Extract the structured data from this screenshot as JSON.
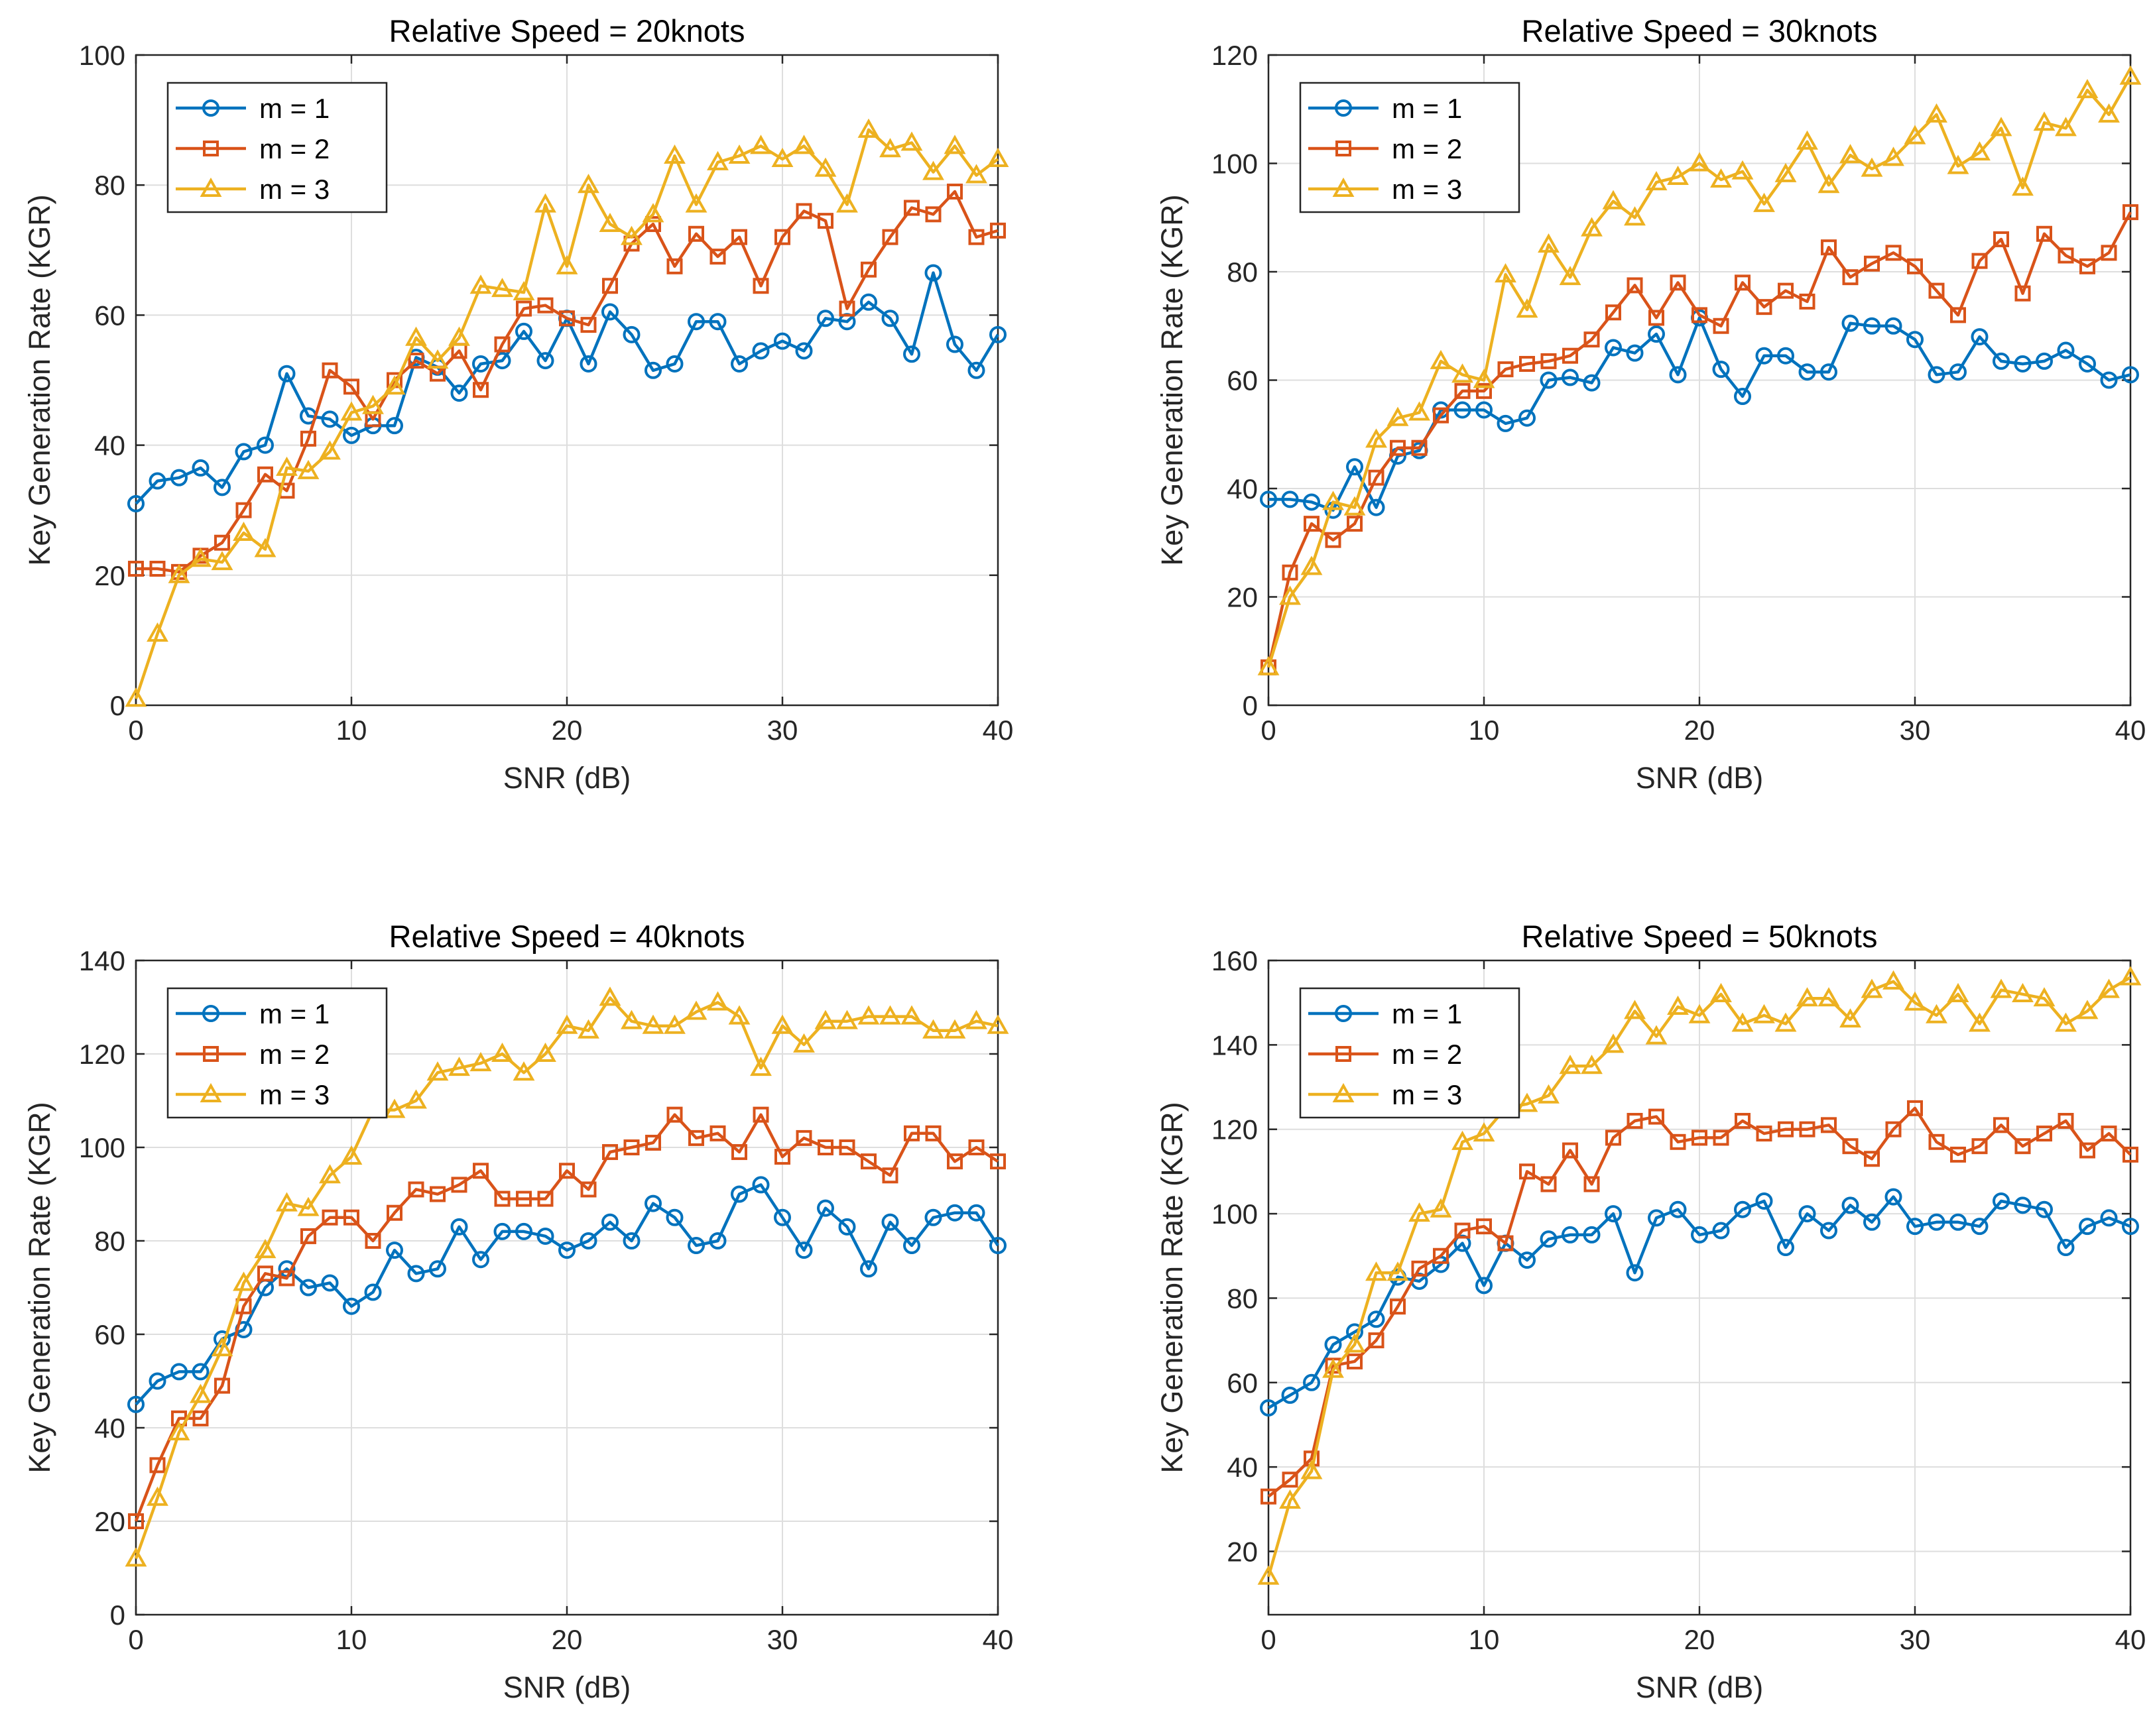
{
  "chart_data": [
    {
      "type": "line",
      "title": "Relative Speed = 20knots",
      "xlabel": "SNR (dB)",
      "ylabel": "Key Generation Rate (KGR)",
      "xlim": [
        0,
        40
      ],
      "ylim": [
        0,
        100
      ],
      "xticks": [
        0,
        10,
        20,
        30,
        40
      ],
      "yticks": [
        0,
        20,
        40,
        60,
        80,
        100
      ],
      "grid": true,
      "legend": "top-left",
      "x": [
        0,
        1,
        2,
        3,
        4,
        5,
        6,
        7,
        8,
        9,
        10,
        11,
        12,
        13,
        14,
        15,
        16,
        17,
        18,
        19,
        20,
        21,
        22,
        23,
        24,
        25,
        26,
        27,
        28,
        29,
        30,
        31,
        32,
        33,
        34,
        35,
        36,
        37,
        38,
        39,
        40
      ],
      "series": [
        {
          "name": "m = 1",
          "color": "#0072BD",
          "marker": "circle",
          "values": [
            31,
            34.5,
            35,
            36.5,
            33.5,
            39,
            40,
            51,
            44.5,
            44,
            41.5,
            43,
            43,
            53.5,
            52,
            48,
            52.5,
            53,
            57.5,
            53,
            59.5,
            52.5,
            60.5,
            57,
            51.5,
            52.5,
            59,
            59,
            52.5,
            54.5,
            56,
            54.5,
            59.5,
            59,
            62,
            59.5,
            54,
            66.5,
            55.5,
            51.5,
            57
          ]
        },
        {
          "name": "m = 2",
          "color": "#D95319",
          "marker": "square",
          "values": [
            21,
            21,
            20.5,
            23,
            25,
            30,
            35.5,
            33,
            41,
            51.5,
            49,
            44,
            50,
            53,
            51,
            54.5,
            48.5,
            55.5,
            61,
            61.5,
            59.5,
            58.5,
            64.5,
            71,
            74,
            67.5,
            72.5,
            69,
            72,
            64.5,
            72,
            76,
            74.5,
            61,
            67,
            72,
            76.5,
            75.5,
            79,
            72,
            73
          ]
        },
        {
          "name": "m = 3",
          "color": "#EDB120",
          "marker": "triangle",
          "values": [
            1,
            11,
            20,
            22.5,
            22,
            26.5,
            24,
            36.5,
            36,
            39,
            45,
            46,
            49,
            56.5,
            53,
            56.5,
            64.5,
            64,
            63.5,
            77,
            67.5,
            80,
            74,
            72,
            75.5,
            84.5,
            77,
            83.5,
            84.5,
            86,
            84,
            86,
            82.5,
            77,
            88.5,
            85.5,
            86.5,
            82,
            86,
            81.5,
            84
          ]
        }
      ]
    },
    {
      "type": "line",
      "title": "Relative Speed = 30knots",
      "xlabel": "SNR (dB)",
      "ylabel": "Key Generation Rate (KGR)",
      "xlim": [
        0,
        40
      ],
      "ylim": [
        0,
        120
      ],
      "xticks": [
        0,
        10,
        20,
        30,
        40
      ],
      "yticks": [
        0,
        20,
        40,
        60,
        80,
        100,
        120
      ],
      "grid": true,
      "legend": "top-left",
      "x": [
        0,
        1,
        2,
        3,
        4,
        5,
        6,
        7,
        8,
        9,
        10,
        11,
        12,
        13,
        14,
        15,
        16,
        17,
        18,
        19,
        20,
        21,
        22,
        23,
        24,
        25,
        26,
        27,
        28,
        29,
        30,
        31,
        32,
        33,
        34,
        35,
        36,
        37,
        38,
        39,
        40
      ],
      "series": [
        {
          "name": "m = 1",
          "color": "#0072BD",
          "marker": "circle",
          "values": [
            38,
            38,
            37.5,
            36,
            44,
            36.5,
            46,
            47,
            54.5,
            54.5,
            54.5,
            52,
            53,
            60,
            60.5,
            59.5,
            66,
            65,
            68.5,
            61,
            71.5,
            62,
            57,
            64.5,
            64.5,
            61.5,
            61.5,
            70.5,
            70,
            70,
            67.5,
            61,
            61.5,
            68,
            63.5,
            63,
            63.5,
            65.5,
            63,
            60,
            61
          ]
        },
        {
          "name": "m = 2",
          "color": "#D95319",
          "marker": "square",
          "values": [
            7,
            24.5,
            33.5,
            30.5,
            33.5,
            42,
            47.5,
            47.5,
            53.5,
            58,
            58,
            62,
            63,
            63.5,
            64.5,
            67.5,
            72.5,
            77.5,
            71.5,
            78,
            72,
            70,
            78,
            73.5,
            76.5,
            74.5,
            84.5,
            79,
            81.5,
            83.5,
            81,
            76.5,
            72,
            82,
            86,
            76,
            87,
            83,
            81,
            83.5,
            91
          ]
        },
        {
          "name": "m = 3",
          "color": "#EDB120",
          "marker": "triangle",
          "values": [
            7,
            20,
            25.5,
            37.5,
            36.5,
            49,
            53,
            54,
            63.5,
            61,
            60,
            79.5,
            73,
            85,
            79,
            88,
            93,
            90,
            96.5,
            97.5,
            100,
            97,
            98.5,
            92.5,
            98,
            104,
            96,
            101.5,
            99,
            101,
            105,
            109,
            99.5,
            102,
            106.5,
            95.5,
            107.5,
            106.5,
            113.5,
            109,
            116
          ]
        }
      ]
    },
    {
      "type": "line",
      "title": "Relative Speed = 40knots",
      "xlabel": "SNR (dB)",
      "ylabel": "Key Generation Rate (KGR)",
      "xlim": [
        0,
        40
      ],
      "ylim": [
        0,
        140
      ],
      "xticks": [
        0,
        10,
        20,
        30,
        40
      ],
      "yticks": [
        0,
        20,
        40,
        60,
        80,
        100,
        120,
        140
      ],
      "grid": true,
      "legend": "top-left",
      "x": [
        0,
        1,
        2,
        3,
        4,
        5,
        6,
        7,
        8,
        9,
        10,
        11,
        12,
        13,
        14,
        15,
        16,
        17,
        18,
        19,
        20,
        21,
        22,
        23,
        24,
        25,
        26,
        27,
        28,
        29,
        30,
        31,
        32,
        33,
        34,
        35,
        36,
        37,
        38,
        39,
        40
      ],
      "series": [
        {
          "name": "m = 1",
          "color": "#0072BD",
          "marker": "circle",
          "values": [
            45,
            50,
            52,
            52,
            59,
            61,
            70,
            74,
            70,
            71,
            66,
            69,
            78,
            73,
            74,
            83,
            76,
            82,
            82,
            81,
            78,
            80,
            84,
            80,
            88,
            85,
            79,
            80,
            90,
            92,
            85,
            78,
            87,
            83,
            74,
            84,
            79,
            85,
            86,
            86,
            79
          ]
        },
        {
          "name": "m = 2",
          "color": "#D95319",
          "marker": "square",
          "values": [
            20,
            32,
            42,
            42,
            49,
            66,
            73,
            72,
            81,
            85,
            85,
            80,
            86,
            91,
            90,
            92,
            95,
            89,
            89,
            89,
            95,
            91,
            99,
            100,
            101,
            107,
            102,
            103,
            99,
            107,
            98,
            102,
            100,
            100,
            97,
            94,
            103,
            103,
            97,
            100,
            97
          ]
        },
        {
          "name": "m = 3",
          "color": "#EDB120",
          "marker": "triangle",
          "values": [
            12,
            25,
            39,
            47,
            57,
            71,
            78,
            88,
            87,
            94,
            98,
            108,
            108,
            110,
            116,
            117,
            118,
            120,
            116,
            120,
            126,
            125,
            132,
            127,
            126,
            126,
            129,
            131,
            128,
            117,
            126,
            122,
            127,
            127,
            128,
            128,
            128,
            125,
            125,
            127,
            126
          ]
        }
      ]
    },
    {
      "type": "line",
      "title": "Relative Speed = 50knots",
      "xlabel": "SNR (dB)",
      "ylabel": "Key Generation Rate (KGR)",
      "xlim": [
        0,
        40
      ],
      "ylim": [
        5,
        160
      ],
      "xticks": [
        0,
        10,
        20,
        30,
        40
      ],
      "yticks": [
        20,
        40,
        60,
        80,
        100,
        120,
        140,
        160
      ],
      "grid": true,
      "legend": "top-left",
      "x": [
        0,
        1,
        2,
        3,
        4,
        5,
        6,
        7,
        8,
        9,
        10,
        11,
        12,
        13,
        14,
        15,
        16,
        17,
        18,
        19,
        20,
        21,
        22,
        23,
        24,
        25,
        26,
        27,
        28,
        29,
        30,
        31,
        32,
        33,
        34,
        35,
        36,
        37,
        38,
        39,
        40
      ],
      "series": [
        {
          "name": "m = 1",
          "color": "#0072BD",
          "marker": "circle",
          "values": [
            54,
            57,
            60,
            69,
            72,
            75,
            85,
            84,
            88,
            93,
            83,
            93,
            89,
            94,
            95,
            95,
            100,
            86,
            99,
            101,
            95,
            96,
            101,
            103,
            92,
            100,
            96,
            102,
            98,
            104,
            97,
            98,
            98,
            97,
            103,
            102,
            101,
            92,
            97,
            99,
            97
          ]
        },
        {
          "name": "m = 2",
          "color": "#D95319",
          "marker": "square",
          "values": [
            33,
            37,
            42,
            64,
            65,
            70,
            78,
            87,
            90,
            96,
            97,
            93,
            110,
            107,
            115,
            107,
            118,
            122,
            123,
            117,
            118,
            118,
            122,
            119,
            120,
            120,
            121,
            116,
            113,
            120,
            125,
            117,
            114,
            116,
            121,
            116,
            119,
            122,
            115,
            119,
            114
          ]
        },
        {
          "name": "m = 3",
          "color": "#EDB120",
          "marker": "triangle",
          "values": [
            14,
            32,
            39,
            63,
            69,
            86,
            86,
            100,
            101,
            117,
            119,
            125,
            126,
            128,
            135,
            135,
            140,
            148,
            142,
            149,
            147,
            152,
            145,
            147,
            145,
            151,
            151,
            146,
            153,
            155,
            150,
            147,
            152,
            145,
            153,
            152,
            151,
            145,
            148,
            153,
            156
          ]
        }
      ]
    }
  ]
}
